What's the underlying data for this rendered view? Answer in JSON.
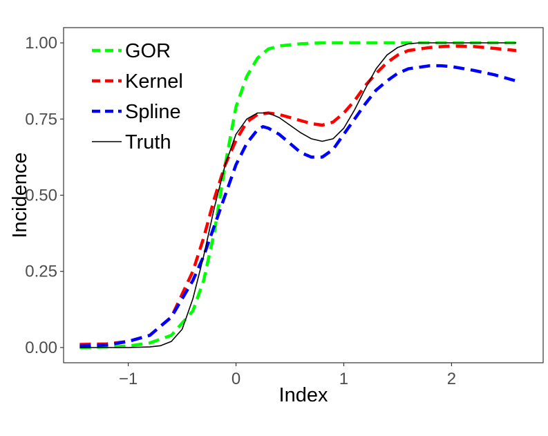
{
  "chart_data": {
    "type": "line",
    "title": "",
    "xlabel": "Index",
    "ylabel": "Incidence",
    "xlim": [
      -1.6,
      2.85
    ],
    "ylim": [
      -0.05,
      1.05
    ],
    "x_ticks": [
      -1,
      0,
      1,
      2
    ],
    "x_tick_labels": [
      "−1",
      "0",
      "1",
      "2"
    ],
    "y_ticks": [
      0.0,
      0.25,
      0.5,
      0.75,
      1.0
    ],
    "y_tick_labels": [
      "0.00",
      "0.25",
      "0.50",
      "0.75",
      "1.00"
    ],
    "grid": false,
    "legend_placement": "top-left",
    "series": [
      {
        "name": "GOR",
        "color": "#00ff00",
        "style": "dashed",
        "x": [
          -1.45,
          -1.2,
          -1.0,
          -0.8,
          -0.6,
          -0.4,
          -0.3,
          -0.2,
          -0.1,
          0.0,
          0.1,
          0.2,
          0.3,
          0.4,
          0.6,
          0.8,
          1.0,
          1.5,
          2.0,
          2.6
        ],
        "y": [
          0.0,
          0.002,
          0.005,
          0.015,
          0.04,
          0.12,
          0.22,
          0.38,
          0.6,
          0.79,
          0.89,
          0.95,
          0.98,
          0.99,
          0.997,
          1.0,
          1.0,
          1.0,
          1.0,
          1.0
        ]
      },
      {
        "name": "Kernel",
        "color": "#ff0000",
        "style": "dashed",
        "x": [
          -1.45,
          -1.2,
          -1.0,
          -0.8,
          -0.6,
          -0.4,
          -0.3,
          -0.2,
          -0.1,
          0.0,
          0.1,
          0.2,
          0.3,
          0.4,
          0.5,
          0.6,
          0.7,
          0.8,
          0.9,
          1.0,
          1.1,
          1.2,
          1.3,
          1.4,
          1.5,
          1.6,
          1.8,
          2.0,
          2.2,
          2.4,
          2.6
        ],
        "y": [
          0.01,
          0.012,
          0.02,
          0.04,
          0.1,
          0.25,
          0.36,
          0.49,
          0.6,
          0.68,
          0.74,
          0.765,
          0.77,
          0.765,
          0.755,
          0.745,
          0.735,
          0.73,
          0.74,
          0.77,
          0.81,
          0.86,
          0.9,
          0.935,
          0.96,
          0.975,
          0.985,
          0.99,
          0.988,
          0.982,
          0.975
        ]
      },
      {
        "name": "Spline",
        "color": "#0000ff",
        "style": "dashed",
        "x": [
          -1.45,
          -1.2,
          -1.0,
          -0.8,
          -0.6,
          -0.4,
          -0.3,
          -0.2,
          -0.1,
          0.0,
          0.1,
          0.2,
          0.25,
          0.3,
          0.4,
          0.5,
          0.6,
          0.7,
          0.8,
          0.9,
          1.0,
          1.1,
          1.2,
          1.3,
          1.4,
          1.5,
          1.6,
          1.8,
          1.9,
          2.0,
          2.2,
          2.4,
          2.6
        ],
        "y": [
          0.005,
          0.008,
          0.02,
          0.04,
          0.1,
          0.22,
          0.3,
          0.4,
          0.5,
          0.6,
          0.67,
          0.715,
          0.725,
          0.72,
          0.7,
          0.67,
          0.64,
          0.625,
          0.625,
          0.65,
          0.7,
          0.75,
          0.8,
          0.845,
          0.875,
          0.9,
          0.915,
          0.925,
          0.925,
          0.922,
          0.91,
          0.895,
          0.875
        ]
      },
      {
        "name": "Truth",
        "color": "#000000",
        "style": "solid",
        "x": [
          -1.45,
          -1.2,
          -1.0,
          -0.8,
          -0.7,
          -0.6,
          -0.5,
          -0.4,
          -0.3,
          -0.2,
          -0.1,
          0.0,
          0.1,
          0.2,
          0.3,
          0.4,
          0.5,
          0.6,
          0.7,
          0.8,
          0.9,
          1.0,
          1.1,
          1.2,
          1.3,
          1.4,
          1.5,
          1.6,
          1.7,
          1.8,
          2.0,
          2.2,
          2.4,
          2.6
        ],
        "y": [
          0.0,
          0.0,
          0.0,
          0.002,
          0.006,
          0.02,
          0.06,
          0.16,
          0.3,
          0.46,
          0.6,
          0.7,
          0.75,
          0.77,
          0.77,
          0.755,
          0.73,
          0.705,
          0.685,
          0.677,
          0.685,
          0.72,
          0.78,
          0.85,
          0.915,
          0.96,
          0.985,
          0.997,
          1.0,
          1.0,
          1.0,
          1.0,
          1.0,
          1.0
        ]
      }
    ]
  }
}
